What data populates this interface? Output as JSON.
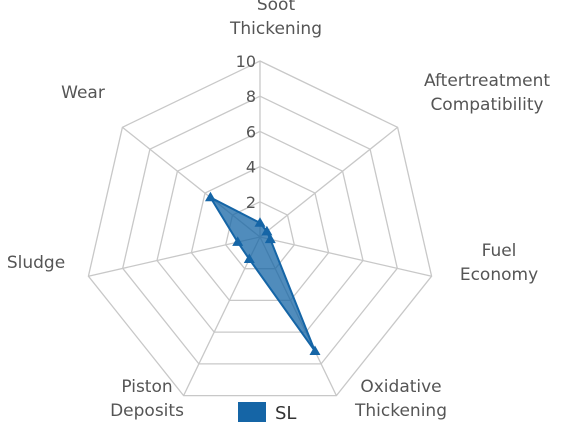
{
  "chart_data": {
    "type": "radar",
    "title": "",
    "axes": [
      [
        "Soot",
        "Thickening"
      ],
      [
        "Aftertreatment",
        "Compatibility"
      ],
      [
        "Fuel",
        "Economy"
      ],
      [
        "Oxidative",
        "Thickening"
      ],
      [
        "Piston",
        "Deposits"
      ],
      [
        "Sludge"
      ],
      [
        "Wear"
      ]
    ],
    "r_ticks": [
      "2",
      "4",
      "6",
      "8",
      "10"
    ],
    "r_range": [
      0,
      10
    ],
    "grid": true,
    "legend_position": "bottom",
    "series": [
      {
        "name": "SL",
        "color": "#1565a6",
        "values": [
          0.8,
          0.5,
          0.6,
          7.2,
          1.4,
          1.3,
          3.6
        ]
      }
    ]
  }
}
